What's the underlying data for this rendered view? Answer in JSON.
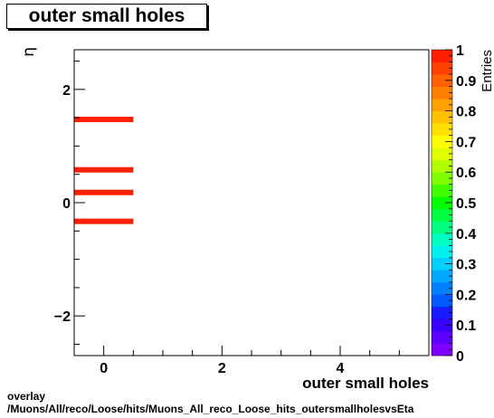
{
  "title": "outer small holes",
  "footer": {
    "line1": "overlay",
    "line2": "/Muons/All/reco/Loose/hits/Muons_All_reco_Loose_hits_outersmallholesvsEta"
  },
  "chart_data": {
    "type": "heatmap",
    "title": "outer small holes",
    "xlabel": "outer small holes",
    "ylabel": "η",
    "zlabel": "Entries",
    "xlim": [
      -0.5,
      5.5
    ],
    "ylim": [
      -2.7,
      2.7
    ],
    "zlim": [
      0,
      1
    ],
    "x_ticks": [
      0,
      2,
      4
    ],
    "y_ticks": [
      -2,
      0,
      2
    ],
    "z_ticks": [
      0,
      0.1,
      0.2,
      0.3,
      0.4,
      0.5,
      0.6,
      0.7,
      0.8,
      0.9,
      1
    ],
    "z_tick_labels": [
      "0",
      "0.1",
      "0.2",
      "0.3",
      "0.4",
      "0.5",
      "0.6",
      "0.7",
      "0.8",
      "0.9",
      "1"
    ],
    "cells": [
      {
        "x": [
          -0.5,
          0.5
        ],
        "y": 1.47,
        "value": 1
      },
      {
        "x": [
          -0.5,
          0.5
        ],
        "y": 0.58,
        "value": 1
      },
      {
        "x": [
          -0.5,
          0.5
        ],
        "y": 0.18,
        "value": 1
      },
      {
        "x": [
          -0.5,
          0.5
        ],
        "y": -0.33,
        "value": 1
      }
    ],
    "palette": [
      "#7f00ff",
      "#5b00ff",
      "#3a00ff",
      "#1a1aff",
      "#005aff",
      "#0080ff",
      "#00a8ff",
      "#00cfff",
      "#00f0f0",
      "#00ffc0",
      "#00ff80",
      "#00ff40",
      "#00ff00",
      "#40ff00",
      "#80ff00",
      "#b0ff00",
      "#e0ff00",
      "#ffff00",
      "#ffe000",
      "#ffc000",
      "#ffa000",
      "#ff8000",
      "#ff6000",
      "#ff4000",
      "#ff2000"
    ],
    "grid": false
  }
}
